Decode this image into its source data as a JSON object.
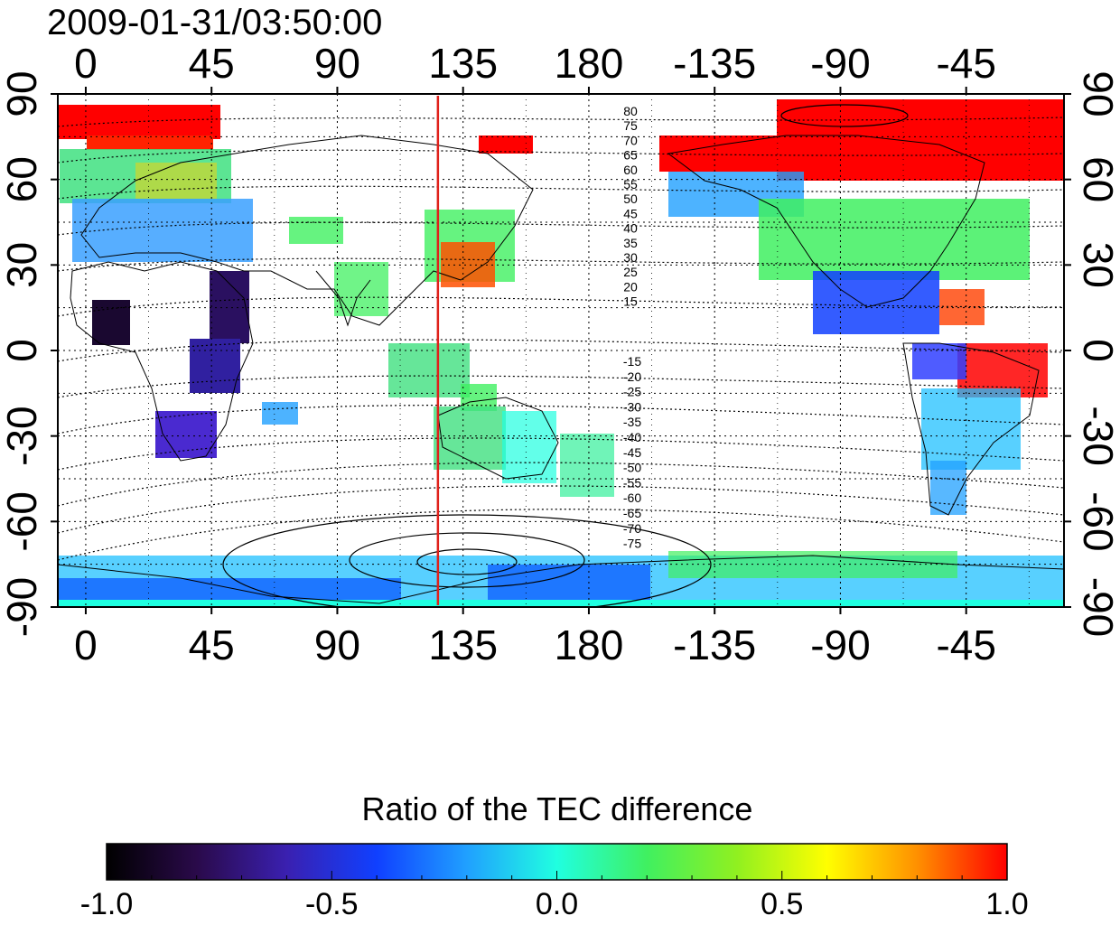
{
  "title": "2009-01-31/03:50:00",
  "map": {
    "top_lon_ticks": [
      "0",
      "45",
      "90",
      "135",
      "180",
      "-135",
      "-90",
      "-45"
    ],
    "bottom_lon_ticks": [
      "0",
      "45",
      "90",
      "135",
      "180",
      "-135",
      "-90",
      "-45"
    ],
    "left_lat_ticks": [
      "90",
      "60",
      "30",
      "0",
      "-30",
      "-60",
      "-90"
    ],
    "right_lat_ticks": [
      "90",
      "60",
      "30",
      "0",
      "-30",
      "-60",
      "-90"
    ],
    "lon_tick_values": [
      0,
      45,
      90,
      135,
      180,
      225,
      270,
      315
    ],
    "lat_tick_values": [
      90,
      60,
      30,
      0,
      -30,
      -60,
      -90
    ],
    "lon_range": [
      -10,
      350
    ],
    "lat_range": [
      -90,
      90
    ],
    "meridian_marker_lon": 126,
    "meridian_marker_color": "#e0201a",
    "north_contour_labels": [
      "80",
      "75",
      "70",
      "65",
      "60",
      "55",
      "50",
      "45",
      "40",
      "35",
      "30",
      "25",
      "20",
      "15"
    ],
    "south_contour_labels": [
      "-15",
      "-20",
      "-25",
      "-30",
      "-35",
      "-40",
      "-45",
      "-50",
      "-55",
      "-60",
      "-65",
      "-70",
      "-75"
    ]
  },
  "colorbar": {
    "title": "Ratio of the TEC difference",
    "tick_labels": [
      "-1.0",
      "-0.5",
      "0.0",
      "0.5",
      "1.0"
    ],
    "range": [
      -1.0,
      1.0
    ],
    "colors": [
      "#000000",
      "#2a0a4a",
      "#3a20b0",
      "#1040ff",
      "#20a0ff",
      "#20ffe0",
      "#40f060",
      "#90f020",
      "#ffff00",
      "#ff9000",
      "#ff0000"
    ]
  }
}
